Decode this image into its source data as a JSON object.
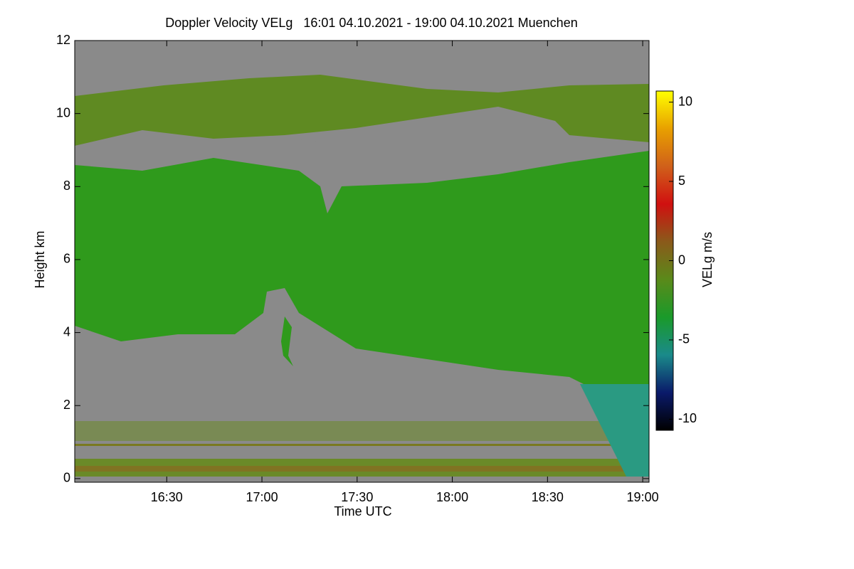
{
  "chart_data": {
    "type": "heatmap",
    "title": "Doppler Velocity VELg   16:01 04.10.2021 - 19:00 04.10.2021 Muenchen",
    "x_label": "Time UTC",
    "y_label": "Height km",
    "colorbar_label": "VELg m/s",
    "xlim": [
      961,
      1142
    ],
    "xticks": [
      {
        "value": 990,
        "label": "16:30"
      },
      {
        "value": 1020,
        "label": "17:00"
      },
      {
        "value": 1050,
        "label": "17:30"
      },
      {
        "value": 1080,
        "label": "18:00"
      },
      {
        "value": 1110,
        "label": "18:30"
      },
      {
        "value": 1140,
        "label": "19:00"
      }
    ],
    "ylim": [
      -0.1,
      12
    ],
    "yticks": [
      0,
      2,
      4,
      6,
      8,
      10,
      12
    ],
    "zlim": [
      -10.7,
      10.7
    ],
    "zticks": [
      -10,
      -5,
      0,
      5,
      10
    ],
    "colormap": [
      "#000000",
      "#0a1a6a",
      "#1a8a8a",
      "#1a9a2a",
      "#5a8a1a",
      "#8a5a1a",
      "#d01010",
      "#d0601a",
      "#e8a000",
      "#ffff00"
    ]
  }
}
